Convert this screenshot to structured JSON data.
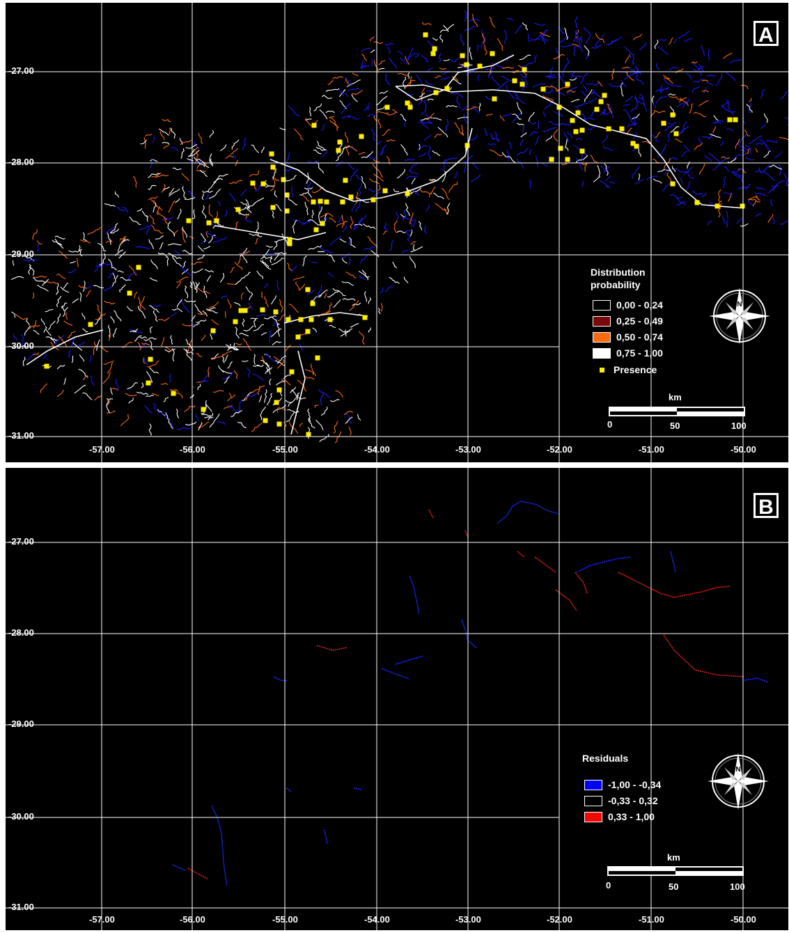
{
  "figure": {
    "x_ticks": [
      "-57.00",
      "-56.00",
      "-55.00",
      "-54.00",
      "-53.00",
      "-52.00",
      "-51.00",
      "-50.00"
    ],
    "y_ticks": [
      "-27.00",
      "-28.00",
      "-29.00",
      "-30.00",
      "-31.00"
    ]
  },
  "panel_a": {
    "tag": "A",
    "legend": {
      "title_line1": "Distribution",
      "title_line2": "probability",
      "classes": [
        {
          "label": "0,00 - 0,24",
          "color": "#000000"
        },
        {
          "label": "0,25 - 0,49",
          "color": "#7a0a0a"
        },
        {
          "label": "0,50 - 0,74",
          "color": "#ff6a10"
        },
        {
          "label": "0,75 - 1,00",
          "color": "#ffffff"
        }
      ],
      "presence_label": "Presence",
      "presence_color": "#ffee00"
    },
    "scale": {
      "unit": "km",
      "labels": [
        "0",
        "50",
        "100"
      ]
    },
    "compass_letter": "N"
  },
  "panel_b": {
    "tag": "B",
    "legend": {
      "title": "Residuals",
      "classes": [
        {
          "label": "-1,00 - -0,34",
          "color": "#0000ff"
        },
        {
          "label": "-0,33 - 0,32",
          "color": "#000000"
        },
        {
          "label": "0,33 - 1,00",
          "color": "#ff0000"
        }
      ]
    },
    "scale": {
      "unit": "km",
      "labels": [
        "0",
        "50",
        "100"
      ]
    },
    "compass_letter": "N"
  },
  "colors": {
    "background": "#000000",
    "grid": "#ffffff",
    "stream_low": "#1a1aff",
    "stream_mid": "#ff6a10",
    "stream_high": "#ffffff",
    "residual_neg": "#1a2aff",
    "residual_pos": "#e02020"
  }
}
